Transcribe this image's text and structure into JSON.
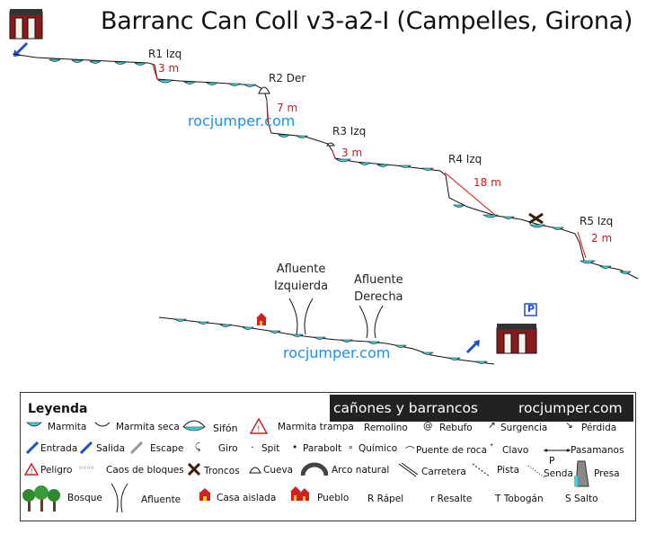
{
  "title": "Barranc Can Coll v3-a2-I (Campelles, Girona)",
  "rappels": [
    {
      "name": "R1 Izq",
      "length": "3 m"
    },
    {
      "name": "R2 Der",
      "length": "7 m"
    },
    {
      "name": "R3 Izq",
      "length": "3 m"
    },
    {
      "name": "R4 Izq",
      "length": "18 m"
    },
    {
      "name": "R5 Izq",
      "length": "2 m"
    }
  ],
  "affluents": [
    {
      "line1": "Afluente",
      "line2": "Izquierda"
    },
    {
      "line1": "Afluente",
      "line2": "Derecha"
    }
  ],
  "watermark": "rocjumper.com",
  "parking_label": "P",
  "legend": {
    "title": "Leyenda",
    "banner_left": "cañones y barrancos",
    "banner_right": "rocjumper.com",
    "items": {
      "marmita": "Marmita",
      "marmita_seca": "Marmita seca",
      "sifon": "Sifón",
      "marmita_trampa": "Marmita trampa",
      "remolino": "Remolino",
      "rebufo": "Rebufo",
      "surgencia": "Surgencia",
      "perdida": "Pérdida",
      "entrada": "Entrada",
      "salida": "Salida",
      "escape": "Escape",
      "giro": "Giro",
      "spit": "Spit",
      "parabolt": "Parabolt",
      "quimico": "Químico",
      "puente_roca": "Puente de roca",
      "clavo": "Clavo",
      "pasamanos": "Pasamanos",
      "peligro": "Peligro",
      "caos": "Caos de bloques",
      "troncos": "Troncos",
      "cueva": "Cueva",
      "arco": "Arco natural",
      "carretera": "Carretera",
      "pista": "Pista",
      "senda": "Senda",
      "senda_p": "P",
      "presa": "Presa",
      "bosque": "Bosque",
      "afluente": "Afluente",
      "casa": "Casa aislada",
      "pueblo": "Pueblo",
      "rapel": "R Rápel",
      "resalte": "r Resalte",
      "tobogan": "T Tobogán",
      "salto": "S Salto"
    }
  }
}
